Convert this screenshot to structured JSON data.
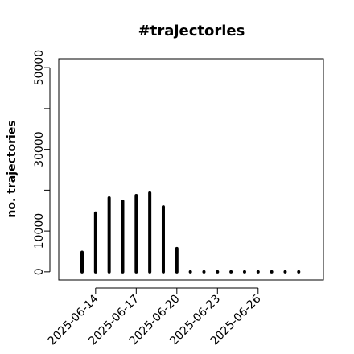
{
  "chart_data": {
    "type": "bar",
    "title": "#trajectories",
    "y_label": "no. trajectories",
    "x": [
      "2025-06-13",
      "2025-06-14",
      "2025-06-15",
      "2025-06-16",
      "2025-06-17",
      "2025-06-18",
      "2025-06-19",
      "2025-06-20",
      "2025-06-21",
      "2025-06-22",
      "2025-06-23",
      "2025-06-24",
      "2025-06-25",
      "2025-06-26",
      "2025-06-27",
      "2025-06-28",
      "2025-06-29"
    ],
    "values": [
      4800,
      14400,
      18100,
      17300,
      18700,
      19300,
      15900,
      5700,
      0,
      0,
      0,
      0,
      0,
      0,
      0,
      0,
      0
    ],
    "color": "#000000",
    "xticks": [
      "2025-06-14",
      "2025-06-17",
      "2025-06-20",
      "2025-06-23",
      "2025-06-26"
    ],
    "ylim": [
      -2000,
      52200
    ],
    "yticks": [
      0,
      10000,
      {
        "value": 20000,
        "label": null
      },
      30000,
      {
        "value": 40000,
        "label": null
      },
      50000
    ]
  }
}
